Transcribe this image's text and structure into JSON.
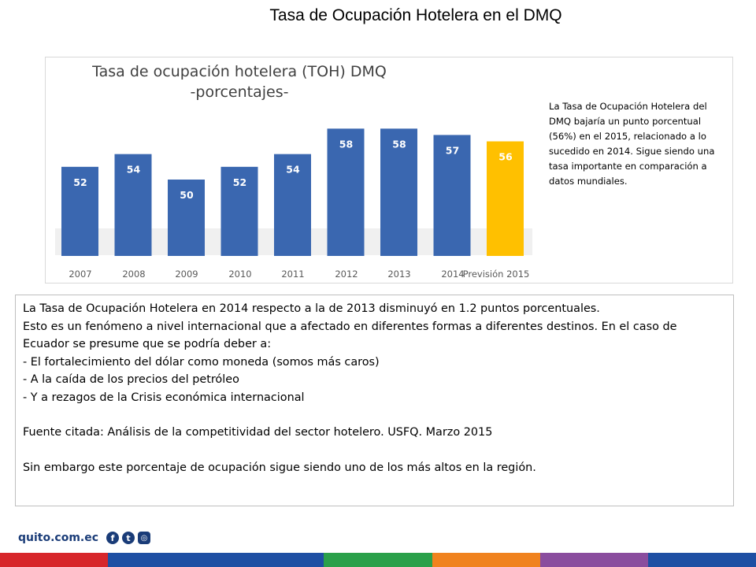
{
  "slide": {
    "title": "Tasa de Ocupación Hotelera en el DMQ"
  },
  "chart_data": {
    "type": "bar",
    "title_line1": "Tasa de ocupación hotelera (TOH) DMQ",
    "title_line2": "-porcentajes-",
    "categories": [
      "2007",
      "2008",
      "2009",
      "2010",
      "2011",
      "2012",
      "2013",
      "2014",
      "Previsión 2015"
    ],
    "values": [
      52,
      54,
      50,
      52,
      54,
      58,
      58,
      57,
      56
    ],
    "highlight_index": 8,
    "colors": {
      "bar": "#3a67b0",
      "bar_highlight": "#ffc000",
      "label_on_bar": "#ffffff",
      "label_on_highlight": "#ffffff",
      "tick": "#595959"
    },
    "ylim": [
      38,
      62
    ],
    "xlabel": "",
    "ylabel": "",
    "grid": false,
    "legend": "none"
  },
  "side_note": {
    "text": "La Tasa de Ocupación Hotelera del DMQ bajaría un punto porcentual (56%) en el 2015, relacionado a lo sucedido en 2014. Sigue siendo una tasa importante en comparación a datos mundiales."
  },
  "text_box": {
    "lines": [
      "La Tasa de Ocupación Hotelera en 2014 respecto a la de 2013 disminuyó en 1.2 puntos porcentuales.",
      "Esto es un fenómeno a nivel internacional que a afectado en diferentes formas a diferentes destinos. En el caso de",
      "Ecuador se presume que se podría deber a:",
      "- El fortalecimiento del dólar como moneda (somos más caros)",
      "- A la caída de los precios del petróleo",
      "- Y a rezagos de la Crisis económica internacional",
      "Fuente citada: Análisis de la competitividad del sector hotelero. USFQ. Marzo 2015",
      "Sin embargo este porcentaje de ocupación sigue siendo uno de los más altos en la región."
    ]
  },
  "footer": {
    "brand": "quito.com.ec",
    "icons": [
      "facebook-icon",
      "twitter-icon",
      "instagram-icon"
    ],
    "strip_colors": [
      "#d7262a",
      "#1e4fa3",
      "#1e4fa3",
      "#2aa04a",
      "#f0821e",
      "#8a4d9e",
      "#1e4fa3"
    ]
  }
}
